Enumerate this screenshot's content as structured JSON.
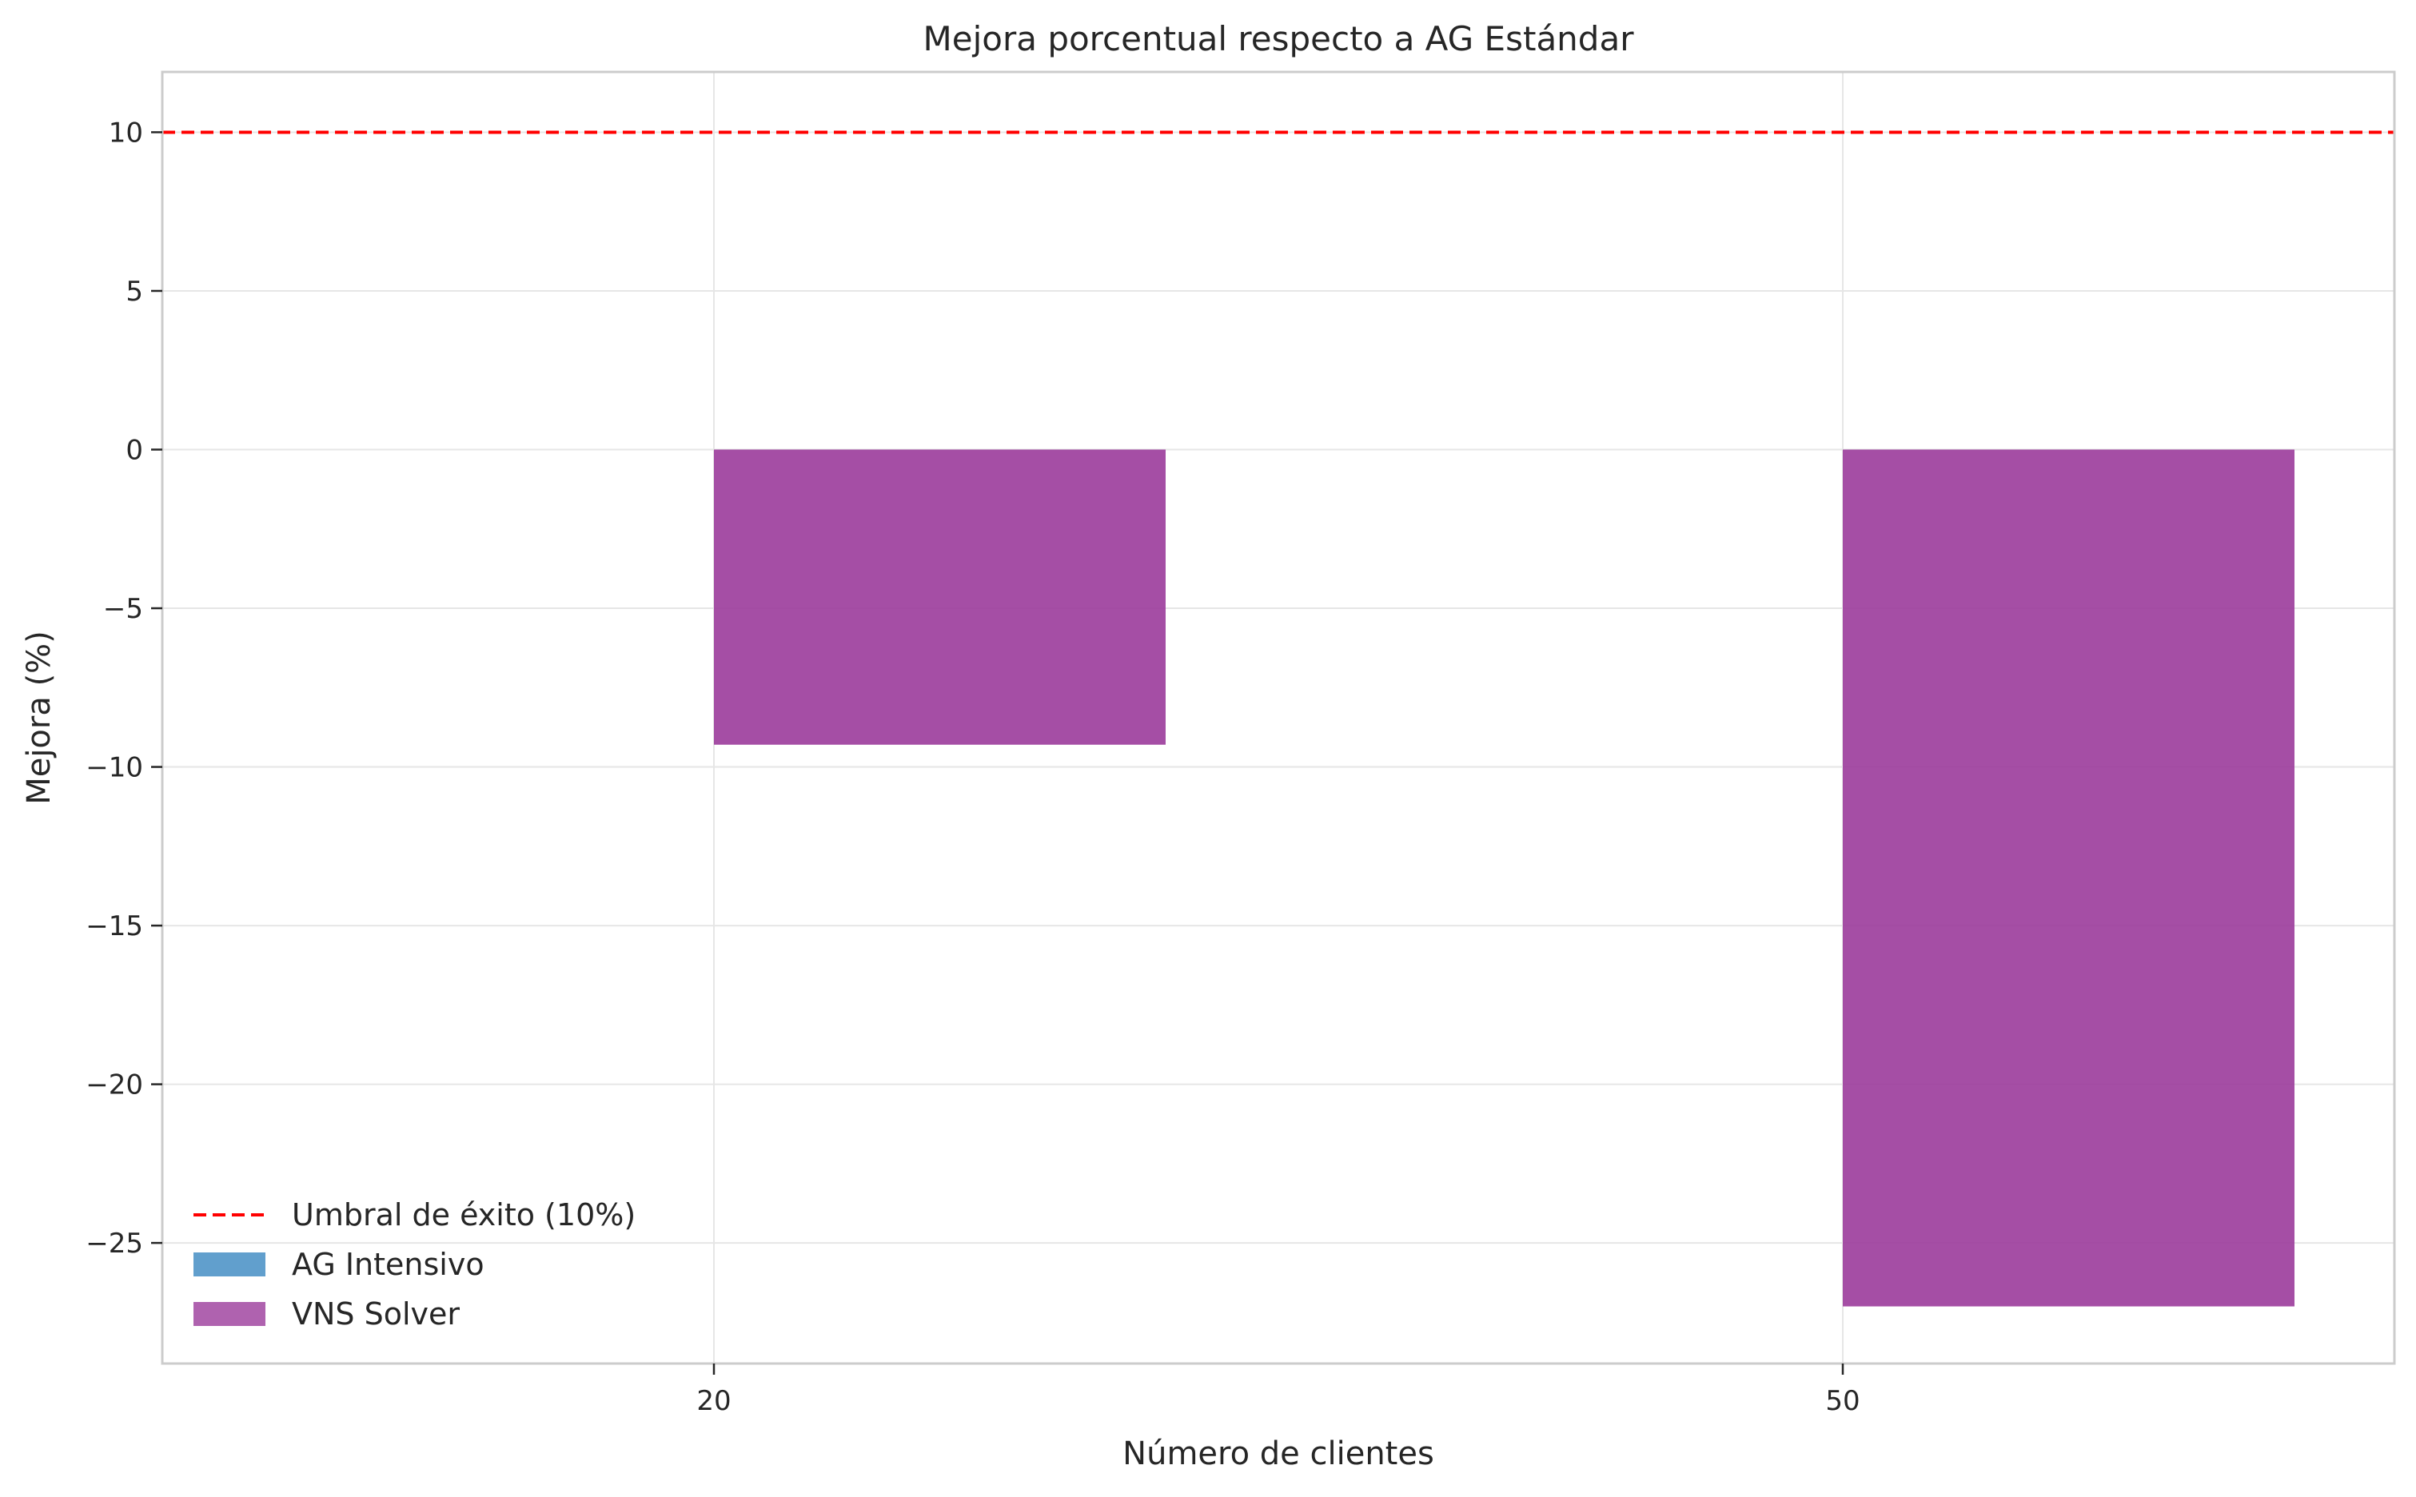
{
  "chart_data": {
    "type": "bar",
    "title": "Mejora porcentual respecto a AG Estándar",
    "xlabel": "Número de clientes",
    "ylabel": "Mejora (%)",
    "categories": [
      "20",
      "50"
    ],
    "series": [
      {
        "name": "AG Intensivo",
        "values": [
          0,
          0
        ],
        "color": "#3a87c0"
      },
      {
        "name": "VNS Solver",
        "values": [
          -9.3,
          -27.0
        ],
        "color": "#9b3b9b"
      }
    ],
    "reference_line": {
      "name": "Umbral de éxito (10%)",
      "y": 10,
      "color": "#ff0000",
      "style": "dashed"
    },
    "ylim": [
      -28.8,
      11.9
    ],
    "yticks": [
      10,
      5,
      0,
      -5,
      -10,
      -15,
      -20,
      -25
    ],
    "ytick_labels": [
      "10",
      "5",
      "0",
      "−5",
      "−10",
      "−15",
      "−20",
      "−25"
    ],
    "grid": true,
    "legend_position": "lower-left"
  }
}
